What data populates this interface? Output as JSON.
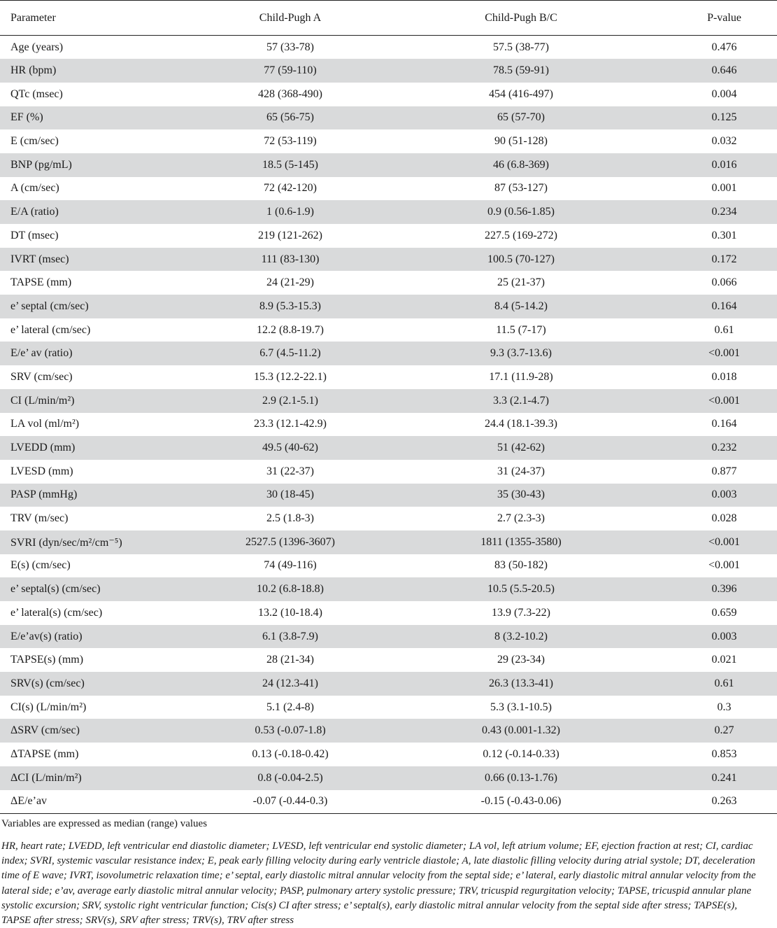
{
  "table": {
    "headers": [
      "Parameter",
      "Child-Pugh A",
      "Child-Pugh B/C",
      "P-value"
    ],
    "rows": [
      [
        "Age (years)",
        "57 (33-78)",
        "57.5 (38-77)",
        "0.476"
      ],
      [
        "HR (bpm)",
        "77 (59-110)",
        "78.5 (59-91)",
        "0.646"
      ],
      [
        "QTc (msec)",
        "428 (368-490)",
        "454 (416-497)",
        "0.004"
      ],
      [
        "EF (%)",
        "65 (56-75)",
        "65 (57-70)",
        "0.125"
      ],
      [
        "E (cm/sec)",
        "72 (53-119)",
        "90 (51-128)",
        "0.032"
      ],
      [
        "BNP (pg/mL)",
        "18.5 (5-145)",
        "46 (6.8-369)",
        "0.016"
      ],
      [
        "A (cm/sec)",
        "72 (42-120)",
        "87 (53-127)",
        "0.001"
      ],
      [
        "E/A (ratio)",
        "1 (0.6-1.9)",
        "0.9 (0.56-1.85)",
        "0.234"
      ],
      [
        "DT (msec)",
        "219 (121-262)",
        "227.5 (169-272)",
        "0.301"
      ],
      [
        "IVRT (msec)",
        "111 (83-130)",
        "100.5 (70-127)",
        "0.172"
      ],
      [
        "TAPSE (mm)",
        "24 (21-29)",
        "25 (21-37)",
        "0.066"
      ],
      [
        "e’ septal (cm/sec)",
        "8.9 (5.3-15.3)",
        "8.4 (5-14.2)",
        "0.164"
      ],
      [
        "e’ lateral (cm/sec)",
        "12.2 (8.8-19.7)",
        "11.5 (7-17)",
        "0.61"
      ],
      [
        "E/e’ av (ratio)",
        "6.7 (4.5-11.2)",
        "9.3 (3.7-13.6)",
        "<0.001"
      ],
      [
        "SRV (cm/sec)",
        "15.3 (12.2-22.1)",
        "17.1 (11.9-28)",
        "0.018"
      ],
      [
        "CI (L/min/m²)",
        "2.9 (2.1-5.1)",
        "3.3 (2.1-4.7)",
        "<0.001"
      ],
      [
        "LA vol (ml/m²)",
        "23.3 (12.1-42.9)",
        "24.4 (18.1-39.3)",
        "0.164"
      ],
      [
        "LVEDD (mm)",
        "49.5 (40-62)",
        "51 (42-62)",
        "0.232"
      ],
      [
        "LVESD (mm)",
        "31 (22-37)",
        "31 (24-37)",
        "0.877"
      ],
      [
        "PASP (mmHg)",
        "30 (18-45)",
        "35 (30-43)",
        "0.003"
      ],
      [
        "TRV (m/sec)",
        "2.5 (1.8-3)",
        "2.7 (2.3-3)",
        "0.028"
      ],
      [
        "SVRI (dyn/sec/m²/cm⁻⁵)",
        "2527.5 (1396-3607)",
        "1811 (1355-3580)",
        "<0.001"
      ],
      [
        "E(s) (cm/sec)",
        "74 (49-116)",
        "83 (50-182)",
        "<0.001"
      ],
      [
        "e’ septal(s) (cm/sec)",
        "10.2 (6.8-18.8)",
        "10.5 (5.5-20.5)",
        "0.396"
      ],
      [
        "e’ lateral(s) (cm/sec)",
        "13.2 (10-18.4)",
        "13.9 (7.3-22)",
        "0.659"
      ],
      [
        "E/e’av(s) (ratio)",
        "6.1 (3.8-7.9)",
        "8 (3.2-10.2)",
        "0.003"
      ],
      [
        "TAPSE(s) (mm)",
        "28 (21-34)",
        "29 (23-34)",
        "0.021"
      ],
      [
        "SRV(s) (cm/sec)",
        "24 (12.3-41)",
        "26.3 (13.3-41)",
        "0.61"
      ],
      [
        "CI(s) (L/min/m²)",
        "5.1 (2.4-8)",
        "5.3 (3.1-10.5)",
        "0.3"
      ],
      [
        "ΔSRV (cm/sec)",
        "0.53 (-0.07-1.8)",
        "0.43 (0.001-1.32)",
        "0.27"
      ],
      [
        "ΔTAPSE (mm)",
        "0.13 (-0.18-0.42)",
        "0.12 (-0.14-0.33)",
        "0.853"
      ],
      [
        "ΔCI (L/min/m²)",
        "0.8 (-0.04-2.5)",
        "0.66 (0.13-1.76)",
        "0.241"
      ],
      [
        "ΔE/e’av",
        "-0.07 (-0.44-0.3)",
        "-0.15 (-0.43-0.06)",
        "0.263"
      ]
    ]
  },
  "footnote": "Variables are expressed as median (range) values",
  "abbreviations": "HR, heart rate; LVEDD, left ventricular end diastolic diameter; LVESD, left ventricular end systolic diameter; LA vol, left atrium volume; EF, ejection fraction at rest; CI, cardiac index; SVRI, systemic vascular resistance index; E, peak early filling velocity during early ventricle diastole; A, late diastolic filling velocity during atrial systole; DT, deceleration time of E wave; IVRT, isovolumetric relaxation time; e’ septal, early diastolic mitral annular velocity from the septal side; e’ lateral, early diastolic mitral annular velocity from the lateral side; e’av, average early diastolic mitral annular velocity; PASP, pulmonary artery systolic pressure; TRV, tricuspid regurgitation velocity; TAPSE, tricuspid annular plane systolic excursion; SRV, systolic right ventricular function; Cis(s) CI after stress; e’ septal(s), early diastolic mitral annular velocity from the septal side after stress; TAPSE(s), TAPSE after stress; SRV(s), SRV after stress; TRV(s), TRV after stress"
}
